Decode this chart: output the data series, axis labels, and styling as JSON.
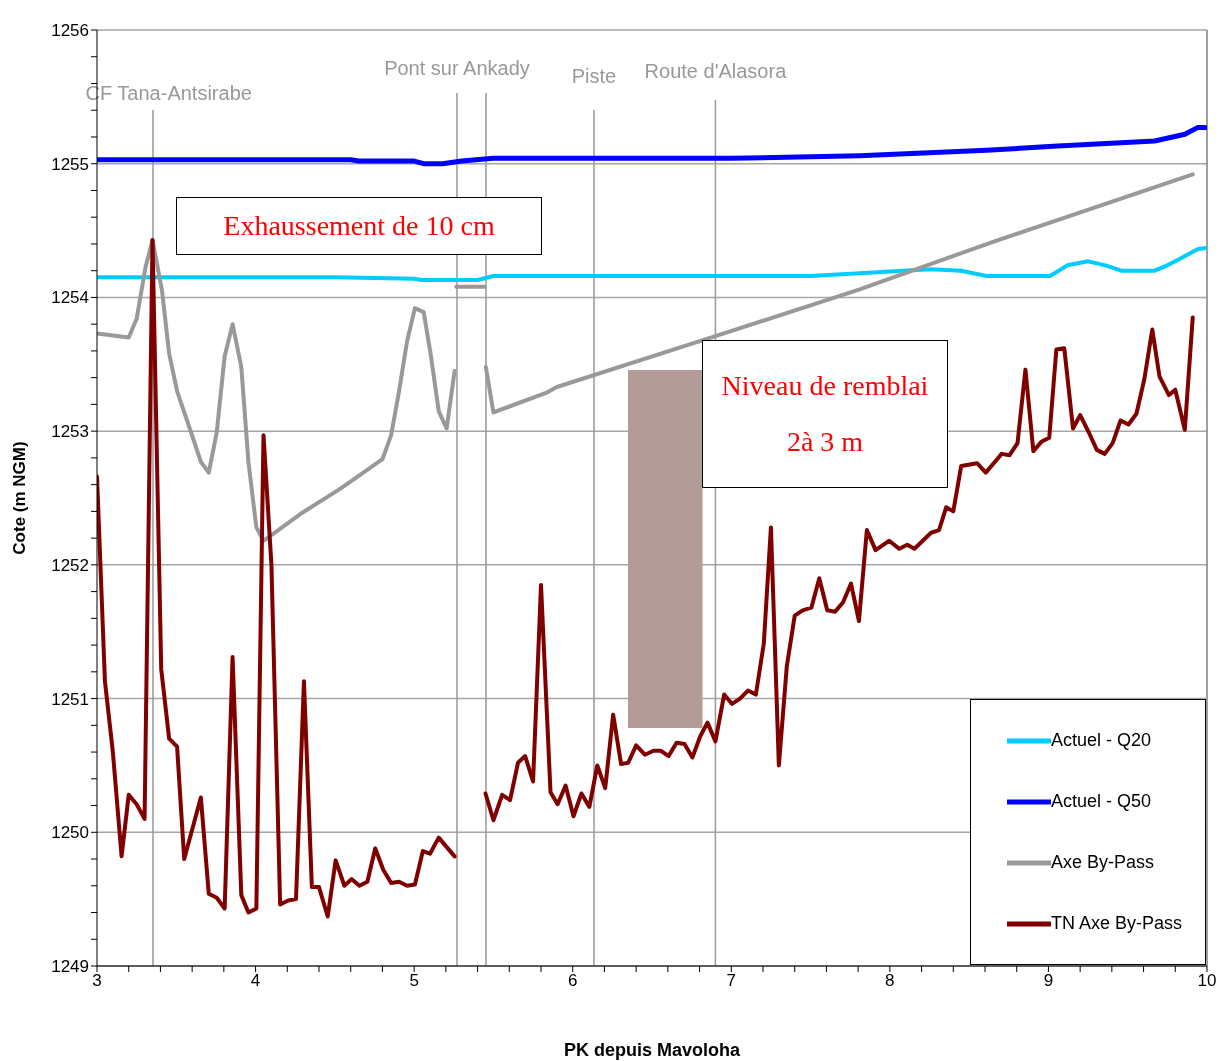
{
  "chart_data": {
    "type": "line",
    "xlabel": "PK depuis Mavoloha",
    "ylabel": "Cote (m NGM)",
    "xlim": [
      3,
      10
    ],
    "xticks": [
      3,
      {
        "value": 3.2,
        "label": null
      },
      {
        "value": 3.4,
        "label": null
      },
      {
        "value": 3.6,
        "label": null
      },
      {
        "value": 3.8,
        "label": null
      },
      4,
      {
        "value": 4.2,
        "label": null
      },
      {
        "value": 4.4,
        "label": null
      },
      {
        "value": 4.6,
        "label": null
      },
      {
        "value": 4.8,
        "label": null
      },
      5,
      {
        "value": 5.2,
        "label": null
      },
      {
        "value": 5.4,
        "label": null
      },
      {
        "value": 5.6,
        "label": null
      },
      {
        "value": 5.8,
        "label": null
      },
      6,
      {
        "value": 6.2,
        "label": null
      },
      {
        "value": 6.4,
        "label": null
      },
      {
        "value": 6.6,
        "label": null
      },
      {
        "value": 6.8,
        "label": null
      },
      7,
      {
        "value": 7.2,
        "label": null
      },
      {
        "value": 7.4,
        "label": null
      },
      {
        "value": 7.6,
        "label": null
      },
      {
        "value": 7.8,
        "label": null
      },
      8,
      {
        "value": 8.2,
        "label": null
      },
      {
        "value": 8.4,
        "label": null
      },
      {
        "value": 8.6,
        "label": null
      },
      {
        "value": 8.8,
        "label": null
      },
      9,
      {
        "value": 9.2,
        "label": null
      },
      {
        "value": 9.4,
        "label": null
      },
      {
        "value": 9.6,
        "label": null
      },
      {
        "value": 9.8,
        "label": null
      },
      10
    ],
    "ylim": [
      1249,
      1256
    ],
    "yticks": [
      1249,
      {
        "value": 1249.2,
        "label": null
      },
      {
        "value": 1249.4,
        "label": null
      },
      {
        "value": 1249.6,
        "label": null
      },
      {
        "value": 1249.8,
        "label": null
      },
      1250,
      {
        "value": 1250.2,
        "label": null
      },
      {
        "value": 1250.4,
        "label": null
      },
      {
        "value": 1250.6,
        "label": null
      },
      {
        "value": 1250.8,
        "label": null
      },
      1251,
      {
        "value": 1251.2,
        "label": null
      },
      {
        "value": 1251.4,
        "label": null
      },
      {
        "value": 1251.6,
        "label": null
      },
      {
        "value": 1251.8,
        "label": null
      },
      1252,
      {
        "value": 1252.2,
        "label": null
      },
      {
        "value": 1252.4,
        "label": null
      },
      {
        "value": 1252.6,
        "label": null
      },
      {
        "value": 1252.8,
        "label": null
      },
      1253,
      {
        "value": 1253.2,
        "label": null
      },
      {
        "value": 1253.4,
        "label": null
      },
      {
        "value": 1253.6,
        "label": null
      },
      {
        "value": 1253.8,
        "label": null
      },
      1254,
      {
        "value": 1254.2,
        "label": null
      },
      {
        "value": 1254.4,
        "label": null
      },
      {
        "value": 1254.6,
        "label": null
      },
      {
        "value": 1254.8,
        "label": null
      },
      1255,
      {
        "value": 1255.2,
        "label": null
      },
      {
        "value": 1255.4,
        "label": null
      },
      {
        "value": 1255.6,
        "label": null
      },
      {
        "value": 1255.8,
        "label": null
      },
      1256
    ],
    "grid": "y",
    "legend": "bottom right",
    "marker": "none",
    "series": [
      {
        "name": "Actuel - Q20",
        "color": "#00ccff",
        "x": [
          3,
          4.5,
          5.0,
          5.05,
          5.4,
          5.5,
          7.5,
          7.81,
          8.08,
          8.26,
          8.45,
          8.61,
          9.01,
          9.12,
          9.25,
          9.36,
          9.46,
          9.67,
          9.75,
          9.83,
          9.94,
          9.99
        ],
        "values": [
          1254.15,
          1254.15,
          1254.14,
          1254.13,
          1254.13,
          1254.16,
          1254.16,
          1254.18,
          1254.2,
          1254.21,
          1254.2,
          1254.16,
          1254.16,
          1254.24,
          1254.27,
          1254.24,
          1254.2,
          1254.2,
          1254.24,
          1254.29,
          1254.36,
          1254.37
        ]
      },
      {
        "name": "Actuel - Q50",
        "color": "#0000ff",
        "x": [
          3,
          4.6,
          4.65,
          5.0,
          5.06,
          5.18,
          5.3,
          5.5,
          6.0,
          7.0,
          7.81,
          8.61,
          9.03,
          9.67,
          9.86,
          9.94,
          9.99
        ],
        "values": [
          1255.03,
          1255.03,
          1255.02,
          1255.02,
          1255.0,
          1255.0,
          1255.02,
          1255.04,
          1255.04,
          1255.04,
          1255.06,
          1255.1,
          1255.13,
          1255.17,
          1255.22,
          1255.27,
          1255.27
        ]
      },
      {
        "name": "Axe By-Pass",
        "color": "#999999",
        "x": [
          3.0,
          3.2,
          3.25,
          3.305,
          3.35,
          3.41,
          3.455,
          3.505,
          3.605,
          3.655,
          3.705,
          3.755,
          3.805,
          3.855,
          3.91,
          3.955,
          4.005,
          4.05,
          4.295,
          4.535,
          4.655,
          4.8,
          4.855,
          4.905,
          4.955,
          5.005,
          5.06,
          5.105,
          5.155,
          5.205,
          5.255,
          5.262,
          5.265,
          5.445,
          5.448,
          5.452,
          5.5,
          5.84,
          5.9,
          6.9,
          7.81,
          8.66,
          9.91
        ],
        "values": [
          1253.73,
          1253.7,
          1253.84,
          1254.22,
          1254.43,
          1254.05,
          1253.58,
          1253.3,
          1252.95,
          1252.77,
          1252.69,
          1252.99,
          1253.56,
          1253.8,
          1253.48,
          1252.77,
          1252.28,
          1252.18,
          1252.39,
          1252.57,
          1252.67,
          1252.79,
          1252.97,
          1253.3,
          1253.67,
          1253.92,
          1253.89,
          1253.57,
          1253.15,
          1253.02,
          1253.45,
          null,
          1254.08,
          1254.08,
          null,
          1253.48,
          1253.14,
          1253.29,
          1253.33,
          1253.71,
          1254.06,
          1254.42,
          1254.92
        ]
      },
      {
        "name": "TN Axe By-Pass",
        "color": "#800000",
        "x": [
          3.0,
          3.05,
          3.1,
          3.155,
          3.2,
          3.25,
          3.3,
          3.35,
          3.405,
          3.455,
          3.505,
          3.55,
          3.655,
          3.705,
          3.755,
          3.805,
          3.855,
          3.91,
          3.955,
          4.005,
          4.05,
          4.1,
          4.155,
          4.205,
          4.255,
          4.305,
          4.355,
          4.4,
          4.455,
          4.505,
          4.56,
          4.605,
          4.655,
          4.705,
          4.755,
          4.805,
          4.855,
          4.905,
          4.955,
          5.005,
          5.055,
          5.1,
          5.155,
          5.255,
          5.35,
          5.45,
          5.5,
          5.555,
          5.605,
          5.655,
          5.7,
          5.75,
          5.8,
          5.86,
          5.905,
          5.955,
          6.005,
          6.055,
          6.105,
          6.155,
          6.205,
          6.255,
          6.305,
          6.35,
          6.4,
          6.455,
          6.51,
          6.555,
          6.605,
          6.655,
          6.705,
          6.755,
          6.805,
          6.85,
          6.9,
          6.955,
          7.005,
          7.055,
          7.105,
          7.155,
          7.205,
          7.25,
          7.3,
          7.35,
          7.4,
          7.45,
          7.505,
          7.555,
          7.605,
          7.655,
          7.705,
          7.755,
          7.805,
          7.855,
          7.91,
          7.995,
          8.06,
          8.11,
          8.155,
          8.26,
          8.31,
          8.355,
          8.4,
          8.45,
          8.55,
          8.605,
          8.655,
          8.705,
          8.755,
          8.805,
          8.855,
          8.905,
          8.955,
          9.005,
          9.05,
          9.1,
          9.155,
          9.2,
          9.255,
          9.305,
          9.355,
          9.405,
          9.455,
          9.505,
          9.555,
          9.605,
          9.655,
          9.7,
          9.76,
          9.8,
          9.86,
          9.91
        ],
        "values": [
          1252.66,
          1251.13,
          1250.6,
          1249.82,
          1250.28,
          1250.21,
          1250.1,
          1254.43,
          1251.22,
          1250.7,
          1250.64,
          1249.8,
          1250.26,
          1249.54,
          1249.51,
          1249.43,
          1251.31,
          1249.53,
          1249.4,
          1249.43,
          1252.97,
          1252.0,
          1249.46,
          1249.49,
          1249.5,
          1251.13,
          1249.59,
          1249.59,
          1249.37,
          1249.79,
          1249.6,
          1249.65,
          1249.6,
          1249.63,
          1249.88,
          1249.72,
          1249.62,
          1249.63,
          1249.6,
          1249.61,
          1249.86,
          1249.84,
          1249.96,
          1249.82,
          null,
          1250.29,
          1250.09,
          1250.28,
          1250.24,
          1250.52,
          1250.57,
          1250.38,
          1251.85,
          1250.3,
          1250.21,
          1250.35,
          1250.12,
          1250.29,
          1250.19,
          1250.5,
          1250.33,
          1250.88,
          1250.51,
          1250.52,
          1250.65,
          1250.58,
          1250.61,
          1250.61,
          1250.57,
          1250.67,
          1250.66,
          1250.56,
          1250.72,
          1250.82,
          1250.68,
          1251.03,
          1250.96,
          1251.0,
          1251.06,
          1251.03,
          1251.41,
          1252.28,
          1250.5,
          1251.24,
          1251.62,
          1251.66,
          1251.68,
          1251.9,
          1251.66,
          1251.65,
          1251.72,
          1251.86,
          1251.58,
          1252.26,
          1252.11,
          1252.18,
          1252.12,
          1252.15,
          1252.12,
          1252.24,
          1252.26,
          1252.43,
          1252.4,
          1252.74,
          1252.76,
          1252.69,
          1252.76,
          1252.83,
          1252.82,
          1252.91,
          1253.46,
          1252.85,
          1252.92,
          1252.95,
          1253.61,
          1253.62,
          1253.02,
          1253.12,
          1252.99,
          1252.86,
          1252.83,
          1252.91,
          1253.08,
          1253.05,
          1253.13,
          1253.39,
          1253.76,
          1253.41,
          1253.27,
          1253.31,
          1253.01,
          1253.85
        ]
      }
    ],
    "ref_lines": [
      {
        "axis": "x",
        "value": 3.353,
        "label": "CF Tana-Antsirabe",
        "color": "#999999"
      },
      {
        "axis": "x",
        "value": 5.27,
        "label": "Pont sur Ankady",
        "color": "#999999"
      },
      {
        "axis": "x",
        "value": 5.453,
        "label": null,
        "color": "#999999"
      },
      {
        "axis": "x",
        "value": 6.134,
        "label": "Piste",
        "color": "#999999"
      },
      {
        "axis": "x",
        "value": 6.9,
        "label": "Route d'Alasora",
        "color": "#999999"
      }
    ],
    "annotations": [
      "Exhaussement de 10 cm",
      "Niveau de remblai 2à 3 m"
    ]
  }
}
